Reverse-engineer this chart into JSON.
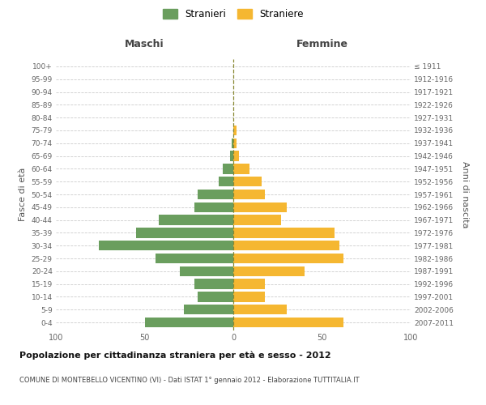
{
  "age_groups": [
    "0-4",
    "5-9",
    "10-14",
    "15-19",
    "20-24",
    "25-29",
    "30-34",
    "35-39",
    "40-44",
    "45-49",
    "50-54",
    "55-59",
    "60-64",
    "65-69",
    "70-74",
    "75-79",
    "80-84",
    "85-89",
    "90-94",
    "95-99",
    "100+"
  ],
  "birth_years": [
    "2007-2011",
    "2002-2006",
    "1997-2001",
    "1992-1996",
    "1987-1991",
    "1982-1986",
    "1977-1981",
    "1972-1976",
    "1967-1971",
    "1962-1966",
    "1957-1961",
    "1952-1956",
    "1947-1951",
    "1942-1946",
    "1937-1941",
    "1932-1936",
    "1927-1931",
    "1922-1926",
    "1917-1921",
    "1912-1916",
    "≤ 1911"
  ],
  "males": [
    50,
    28,
    20,
    22,
    30,
    44,
    76,
    55,
    42,
    22,
    20,
    8,
    6,
    2,
    1,
    0,
    0,
    0,
    0,
    0,
    0
  ],
  "females": [
    62,
    30,
    18,
    18,
    40,
    62,
    60,
    57,
    27,
    30,
    18,
    16,
    9,
    3,
    2,
    2,
    0,
    0,
    0,
    0,
    0
  ],
  "male_color": "#6a9e5e",
  "female_color": "#f5b731",
  "bg_color": "#ffffff",
  "grid_color": "#cccccc",
  "dashed_color": "#888833",
  "title_main": "Popolazione per cittadinanza straniera per età e sesso - 2012",
  "title_sub": "COMUNE DI MONTEBELLO VICENTINO (VI) - Dati ISTAT 1° gennaio 2012 - Elaborazione TUTTITALIA.IT",
  "xlabel_left": "Maschi",
  "xlabel_right": "Femmine",
  "ylabel_left": "Fasce di età",
  "ylabel_right": "Anni di nascita",
  "legend_male": "Stranieri",
  "legend_female": "Straniere",
  "xlim": 100
}
